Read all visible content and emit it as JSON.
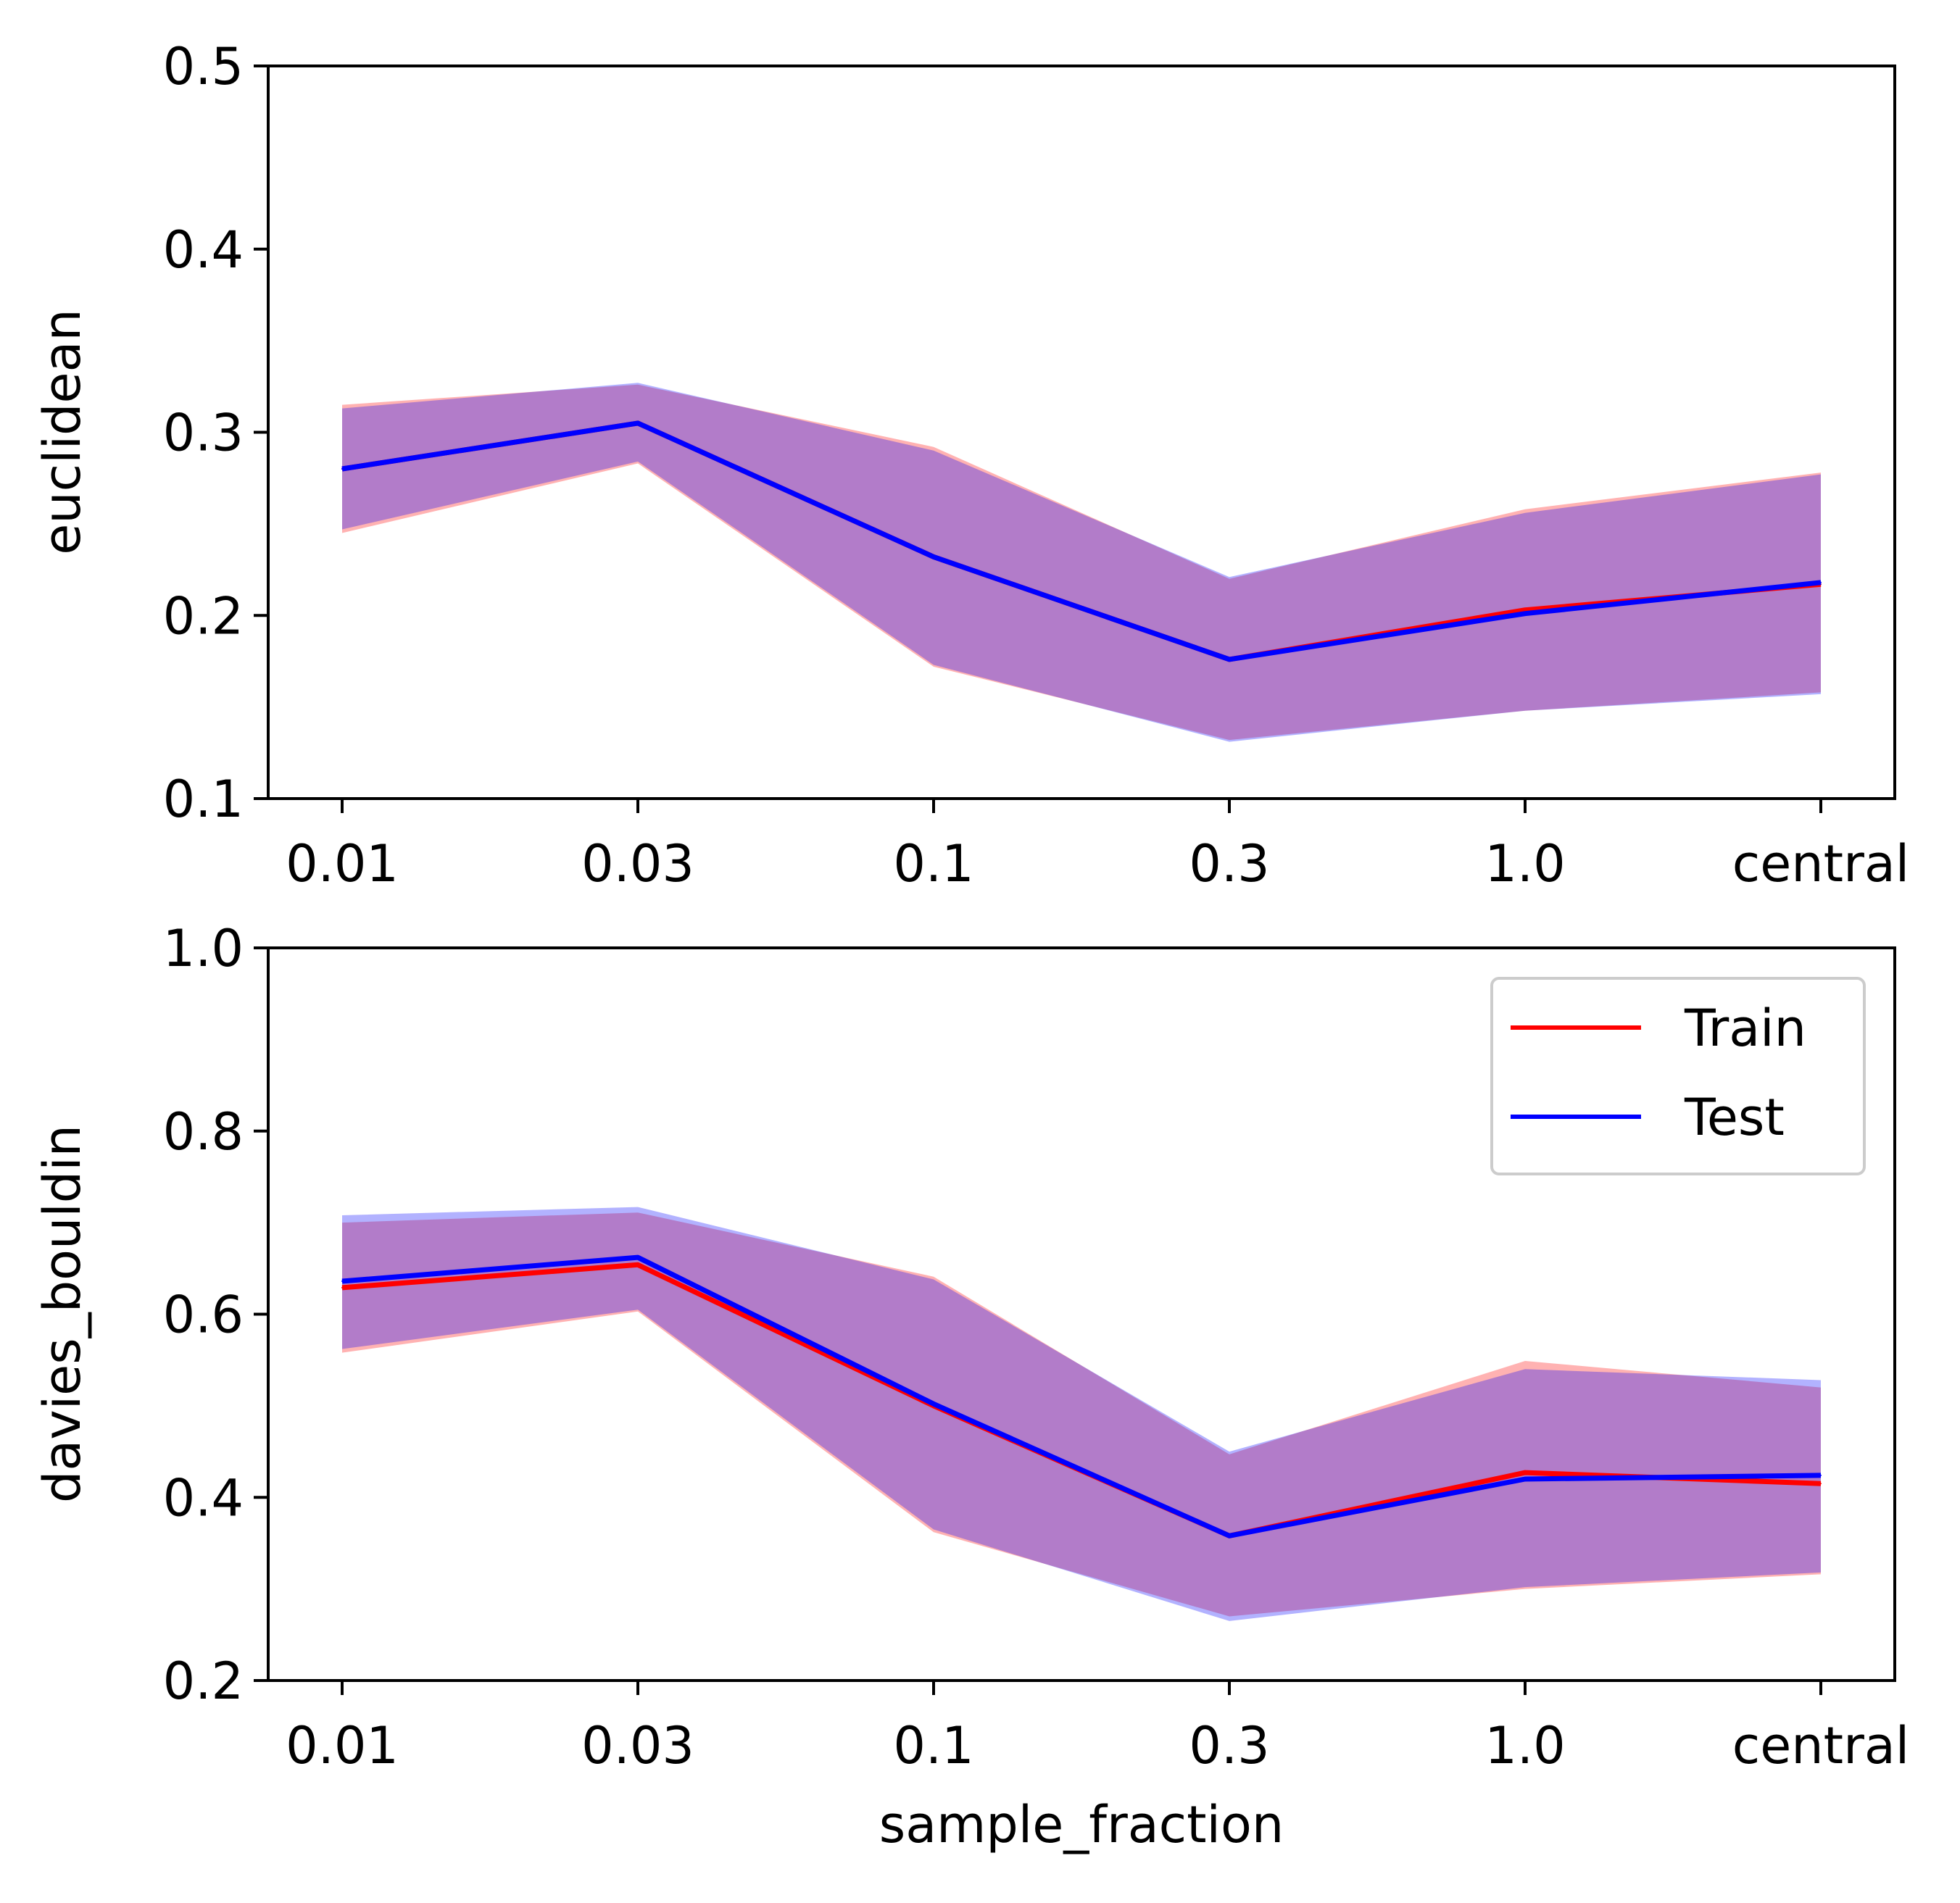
{
  "chart_data": [
    {
      "type": "line",
      "categories": [
        "0.01",
        "0.03",
        "0.1",
        "0.3",
        "1.0",
        "central"
      ],
      "xlabel": "",
      "ylabel": "euclidean",
      "ylim": [
        0.1,
        0.5
      ],
      "yticks": [
        "0.1",
        "0.2",
        "0.3",
        "0.4",
        "0.5"
      ],
      "grid": false,
      "legend": null,
      "series": [
        {
          "name": "Train",
          "color": "#ff0000",
          "values": [
            0.28,
            0.305,
            0.232,
            0.176,
            0.203,
            0.217
          ],
          "lower": [
            0.245,
            0.283,
            0.172,
            0.132,
            0.148,
            0.158
          ],
          "upper": [
            0.315,
            0.326,
            0.292,
            0.22,
            0.258,
            0.278
          ]
        },
        {
          "name": "Test",
          "color": "#0000ff",
          "values": [
            0.28,
            0.305,
            0.232,
            0.176,
            0.201,
            0.218
          ],
          "lower": [
            0.247,
            0.284,
            0.173,
            0.131,
            0.148,
            0.157
          ],
          "upper": [
            0.313,
            0.327,
            0.29,
            0.221,
            0.256,
            0.277
          ]
        }
      ]
    },
    {
      "type": "line",
      "categories": [
        "0.01",
        "0.03",
        "0.1",
        "0.3",
        "1.0",
        "central"
      ],
      "xlabel": "sample_fraction",
      "ylabel": "davies_bouldin",
      "ylim": [
        0.2,
        1.0
      ],
      "yticks": [
        "0.2",
        "0.4",
        "0.6",
        "0.8",
        "1.0"
      ],
      "grid": false,
      "legend": {
        "position": "top-right",
        "entries": [
          "Train",
          "Test"
        ]
      },
      "series": [
        {
          "name": "Train",
          "color": "#ff0000",
          "values": [
            0.629,
            0.654,
            0.5,
            0.358,
            0.427,
            0.415
          ],
          "lower": [
            0.558,
            0.603,
            0.362,
            0.27,
            0.3,
            0.316
          ],
          "upper": [
            0.7,
            0.711,
            0.641,
            0.447,
            0.549,
            0.52
          ]
        },
        {
          "name": "Test",
          "color": "#0000ff",
          "values": [
            0.636,
            0.662,
            0.502,
            0.358,
            0.42,
            0.424
          ],
          "lower": [
            0.562,
            0.605,
            0.365,
            0.265,
            0.302,
            0.318
          ],
          "upper": [
            0.708,
            0.717,
            0.638,
            0.45,
            0.54,
            0.528
          ]
        }
      ]
    }
  ]
}
